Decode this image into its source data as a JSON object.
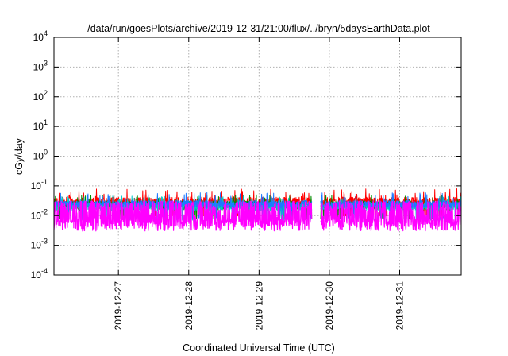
{
  "chart_data": {
    "type": "line",
    "title": "/data/run/goesPlots/archive/2019-12-31/21:00/flux/../bryn/5daysEarthData.plot",
    "xlabel": "Coordinated Universal Time (UTC)",
    "ylabel": "cGy/day",
    "y_scale": "log",
    "ylim": [
      0.0001,
      10000
    ],
    "y_ticks": [
      {
        "base": "10",
        "exp": "-4",
        "value": 0.0001
      },
      {
        "base": "10",
        "exp": "-3",
        "value": 0.001
      },
      {
        "base": "10",
        "exp": "-2",
        "value": 0.01
      },
      {
        "base": "10",
        "exp": "-1",
        "value": 0.1
      },
      {
        "base": "10",
        "exp": "0",
        "value": 1
      },
      {
        "base": "10",
        "exp": "1",
        "value": 10
      },
      {
        "base": "10",
        "exp": "2",
        "value": 100
      },
      {
        "base": "10",
        "exp": "3",
        "value": 1000
      },
      {
        "base": "10",
        "exp": "4",
        "value": 10000
      }
    ],
    "xlim": [
      "2019-12-26T02:00",
      "2019-12-31T21:00"
    ],
    "x_ticks": [
      "2019-12-27",
      "2019-12-28",
      "2019-12-29",
      "2019-12-30",
      "2019-12-31"
    ],
    "grid": true,
    "legend": "none",
    "data_gap": [
      "2019-12-29T18:00",
      "2019-12-29T21:00"
    ],
    "series": [
      {
        "color": "#ff0000",
        "base": 0.028,
        "spread": 0.35,
        "spike_max": 0.08
      },
      {
        "color": "#008b00",
        "base": 0.022,
        "spread": 0.3,
        "spike_max": 0.05
      },
      {
        "color": "#00c8c8",
        "base": 0.02,
        "spread": 0.28,
        "spike_max": 0.045
      },
      {
        "color": "#1e78ff",
        "base": 0.024,
        "spread": 0.25,
        "spike_max": 0.06
      },
      {
        "color": "#ff00ff",
        "base": 0.0055,
        "spread": 0.2,
        "spike_max": 0.03
      }
    ]
  }
}
